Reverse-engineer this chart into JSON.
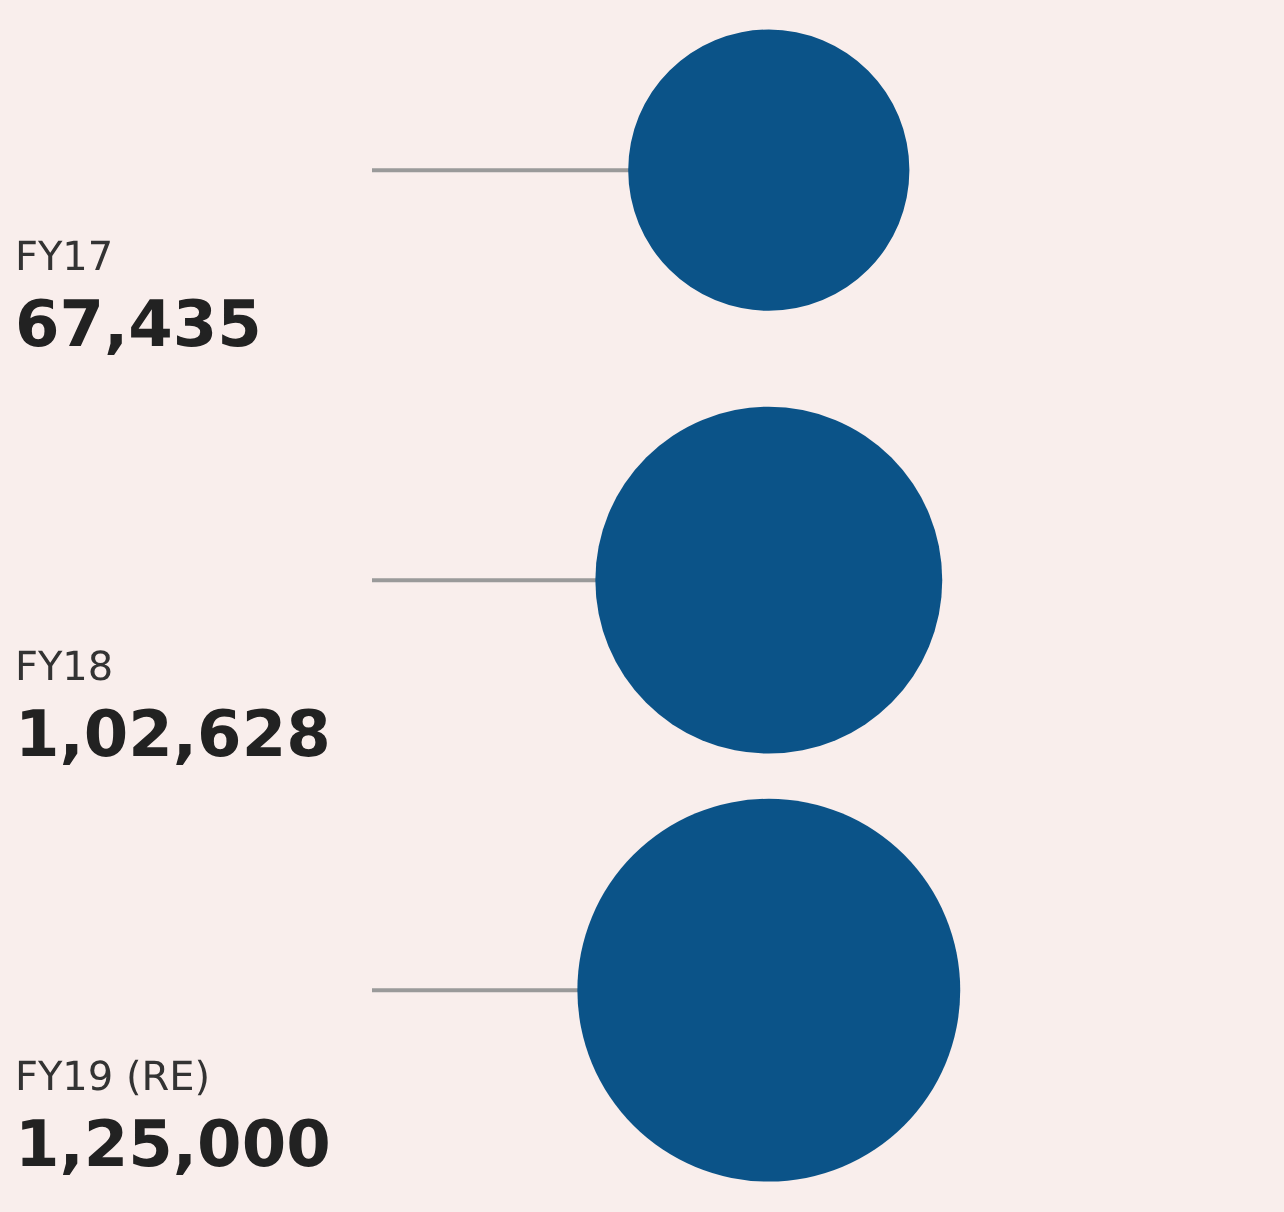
{
  "chart_data": {
    "type": "other",
    "categories": [
      "FY17",
      "FY18",
      "FY19 (RE)"
    ],
    "values": [
      67435,
      102628,
      125000
    ],
    "value_labels": [
      "67,435",
      "1,02,628",
      "1,25,000"
    ],
    "color": "#0b5388"
  }
}
